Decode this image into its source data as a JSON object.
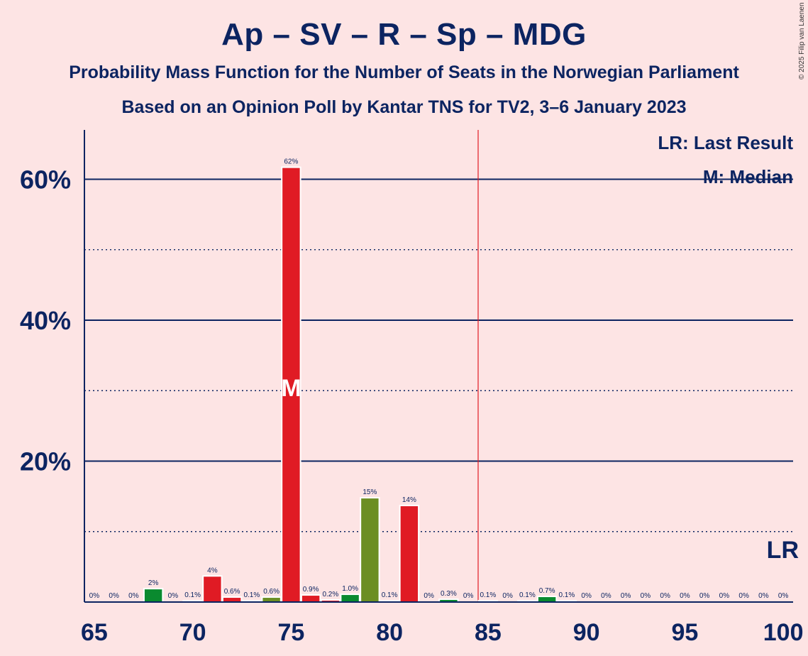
{
  "title": "Ap – SV – R – Sp – MDG",
  "subtitle1": "Probability Mass Function for the Number of Seats in the Norwegian Parliament",
  "subtitle2": "Based on an Opinion Poll by Kantar TNS for TV2, 3–6 January 2023",
  "copyright": "© 2025 Filip van Laenen",
  "legend": {
    "last_result": "LR: Last Result",
    "median": "M: Median"
  },
  "colors": {
    "background": "#fde4e4",
    "text": "#0c2461",
    "red": "#e01b24",
    "green": "#0a8a2f",
    "olive": "#6b8e23",
    "lr_line": "#e01b24"
  },
  "chart_data": {
    "type": "bar",
    "x": [
      65,
      66,
      67,
      68,
      69,
      70,
      71,
      72,
      73,
      74,
      75,
      76,
      77,
      78,
      79,
      80,
      81,
      82,
      83,
      84,
      85,
      86,
      87,
      88,
      89,
      90,
      91,
      92,
      93,
      94,
      95,
      96,
      97,
      98,
      99,
      100
    ],
    "values": [
      0,
      0,
      0,
      1.8,
      0,
      0.1,
      3.6,
      0.6,
      0.1,
      0.6,
      61.6,
      0.9,
      0.2,
      1.0,
      14.7,
      0.1,
      13.6,
      0,
      0.3,
      0,
      0.1,
      0,
      0.1,
      0.7,
      0.1,
      0,
      0,
      0,
      0,
      0,
      0,
      0,
      0,
      0,
      0,
      0
    ],
    "labels": [
      "0%",
      "0%",
      "0%",
      "2%",
      "0%",
      "0.1%",
      "4%",
      "0.6%",
      "0.1%",
      "0.6%",
      "62%",
      "0.9%",
      "0.2%",
      "1.0%",
      "15%",
      "0.1%",
      "14%",
      "0%",
      "0.3%",
      "0%",
      "0.1%",
      "0%",
      "0.1%",
      "0.7%",
      "0.1%",
      "0%",
      "0%",
      "0%",
      "0%",
      "0%",
      "0%",
      "0%",
      "0%",
      "0%",
      "0%",
      "0%"
    ],
    "bar_colors": [
      "red",
      "red",
      "red",
      "green",
      "red",
      "red",
      "red",
      "red",
      "red",
      "olive",
      "red",
      "red",
      "red",
      "green",
      "olive",
      "red",
      "red",
      "red",
      "green",
      "red",
      "red",
      "red",
      "red",
      "green",
      "red",
      "red",
      "red",
      "red",
      "red",
      "red",
      "red",
      "red",
      "red",
      "red",
      "red",
      "red"
    ],
    "x_ticks": [
      "65",
      "70",
      "75",
      "80",
      "85",
      "90",
      "95",
      "100"
    ],
    "y_ticks": [
      "20%",
      "40%",
      "60%"
    ],
    "ylim": [
      0,
      67
    ],
    "xlim": [
      64.5,
      100.5
    ],
    "median": 75,
    "median_label": "M",
    "last_result": 84.5,
    "last_result_label": "LR",
    "grid": "solid major lines at 20/40/60%, dotted minor lines at 10/30/50%"
  }
}
